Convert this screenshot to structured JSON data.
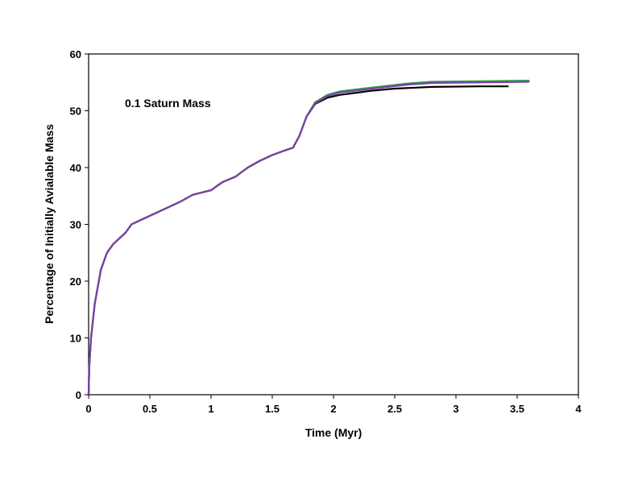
{
  "chart_data": {
    "type": "line",
    "title": "",
    "xlabel": "Time (Myr)",
    "ylabel": "Percentage of Initially Avialable Mass",
    "annotation": "0.1 Saturn Mass",
    "xlim": [
      0,
      4
    ],
    "ylim": [
      0,
      60
    ],
    "xticks": [
      "0",
      "0.5",
      "1",
      "1.5",
      "2",
      "2.5",
      "3",
      "3.5",
      "4"
    ],
    "yticks": [
      "0",
      "10",
      "20",
      "30",
      "40",
      "50",
      "60"
    ],
    "grid": false,
    "legend": "none",
    "series": [
      {
        "color": "#000000",
        "points": [
          [
            0,
            0
          ],
          [
            0.005,
            5
          ],
          [
            0.02,
            10
          ],
          [
            0.05,
            16
          ],
          [
            0.1,
            22
          ],
          [
            0.15,
            25
          ],
          [
            0.2,
            26.5
          ],
          [
            0.3,
            28.5
          ],
          [
            0.35,
            30
          ],
          [
            0.45,
            31
          ],
          [
            0.6,
            32.5
          ],
          [
            0.75,
            34
          ],
          [
            0.85,
            35.2
          ],
          [
            1.0,
            36
          ],
          [
            1.05,
            36.8
          ],
          [
            1.1,
            37.5
          ],
          [
            1.2,
            38.4
          ],
          [
            1.3,
            40
          ],
          [
            1.4,
            41.2
          ],
          [
            1.5,
            42.2
          ],
          [
            1.6,
            43
          ],
          [
            1.67,
            43.5
          ],
          [
            1.72,
            45.5
          ],
          [
            1.78,
            49
          ],
          [
            1.85,
            51.2
          ],
          [
            1.95,
            52.3
          ],
          [
            2.05,
            52.8
          ],
          [
            2.2,
            53.2
          ],
          [
            2.3,
            53.5
          ],
          [
            2.5,
            53.9
          ],
          [
            2.8,
            54.2
          ],
          [
            3.2,
            54.3
          ],
          [
            3.43,
            54.3
          ]
        ]
      },
      {
        "color": "#2ea04a",
        "points": [
          [
            0,
            0
          ],
          [
            0.005,
            5
          ],
          [
            0.02,
            10
          ],
          [
            0.05,
            16
          ],
          [
            0.1,
            22
          ],
          [
            0.15,
            25
          ],
          [
            0.2,
            26.5
          ],
          [
            0.3,
            28.5
          ],
          [
            0.35,
            30
          ],
          [
            0.45,
            31
          ],
          [
            0.6,
            32.5
          ],
          [
            0.75,
            34
          ],
          [
            0.85,
            35.2
          ],
          [
            1.0,
            36
          ],
          [
            1.05,
            36.8
          ],
          [
            1.1,
            37.5
          ],
          [
            1.2,
            38.4
          ],
          [
            1.3,
            40
          ],
          [
            1.4,
            41.2
          ],
          [
            1.5,
            42.2
          ],
          [
            1.6,
            43
          ],
          [
            1.67,
            43.5
          ],
          [
            1.72,
            45.5
          ],
          [
            1.78,
            49
          ],
          [
            1.85,
            51.5
          ],
          [
            1.95,
            52.8
          ],
          [
            2.05,
            53.4
          ],
          [
            2.2,
            53.8
          ],
          [
            2.4,
            54.3
          ],
          [
            2.6,
            54.8
          ],
          [
            2.8,
            55.1
          ],
          [
            3.2,
            55.2
          ],
          [
            3.6,
            55.3
          ]
        ]
      },
      {
        "color": "#7a3fa8",
        "points": [
          [
            0,
            0
          ],
          [
            0.005,
            5
          ],
          [
            0.02,
            10
          ],
          [
            0.05,
            16
          ],
          [
            0.1,
            22
          ],
          [
            0.15,
            25
          ],
          [
            0.2,
            26.5
          ],
          [
            0.3,
            28.5
          ],
          [
            0.35,
            30
          ],
          [
            0.45,
            31
          ],
          [
            0.6,
            32.5
          ],
          [
            0.75,
            34
          ],
          [
            0.85,
            35.2
          ],
          [
            1.0,
            36
          ],
          [
            1.05,
            36.8
          ],
          [
            1.1,
            37.5
          ],
          [
            1.2,
            38.4
          ],
          [
            1.3,
            40
          ],
          [
            1.4,
            41.2
          ],
          [
            1.5,
            42.2
          ],
          [
            1.6,
            43
          ],
          [
            1.67,
            43.5
          ],
          [
            1.72,
            45.5
          ],
          [
            1.78,
            49
          ],
          [
            1.85,
            51.3
          ],
          [
            1.95,
            52.6
          ],
          [
            2.05,
            53.2
          ],
          [
            2.2,
            53.6
          ],
          [
            2.4,
            54.1
          ],
          [
            2.6,
            54.6
          ],
          [
            2.8,
            54.9
          ],
          [
            3.2,
            55.0
          ],
          [
            3.6,
            55.1
          ]
        ]
      }
    ]
  }
}
